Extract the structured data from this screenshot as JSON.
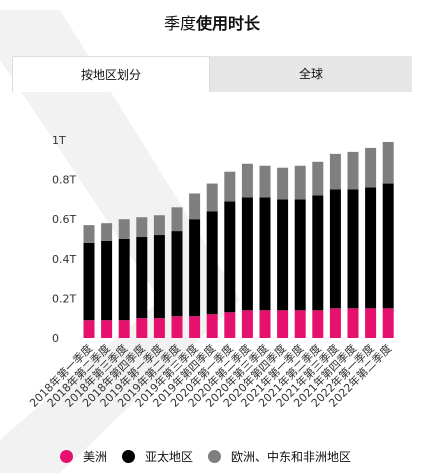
{
  "header": {
    "title_prefix": "季度",
    "title_bold": "使用时长"
  },
  "tabs": [
    {
      "label": "按地区划分",
      "active": true
    },
    {
      "label": "全球",
      "active": false
    }
  ],
  "colors": {
    "americas": "#e6106e",
    "asia_pacific": "#000000",
    "emea": "#7f7f7f",
    "chevron": "#f2f2f2"
  },
  "legend": [
    {
      "label": "美洲",
      "color": "#e6106e"
    },
    {
      "label": "亚太地区",
      "color": "#000000"
    },
    {
      "label": "欧洲、中东和非洲地区",
      "color": "#7f7f7f"
    }
  ],
  "chart_data": {
    "type": "bar",
    "stacked": true,
    "categories": [
      "2018年第一季度",
      "2018年第二季度",
      "2018年第三季度",
      "2018年第四季度",
      "2019年第一季度",
      "2019年第二季度",
      "2019年第三季度",
      "2019年第四季度",
      "2020年第一季度",
      "2020年第二季度",
      "2020年第三季度",
      "2020年第四季度",
      "2021年第一季度",
      "2021年第二季度",
      "2021年第三季度",
      "2021年第四季度",
      "2022年第一季度",
      "2022年第二季度"
    ],
    "series": [
      {
        "name": "美洲",
        "color": "#e6106e",
        "values": [
          0.09,
          0.09,
          0.09,
          0.1,
          0.1,
          0.11,
          0.11,
          0.12,
          0.13,
          0.14,
          0.14,
          0.14,
          0.14,
          0.14,
          0.15,
          0.15,
          0.15,
          0.15
        ]
      },
      {
        "name": "亚太地区",
        "color": "#000000",
        "values": [
          0.39,
          0.4,
          0.41,
          0.41,
          0.42,
          0.43,
          0.49,
          0.52,
          0.56,
          0.57,
          0.57,
          0.56,
          0.56,
          0.58,
          0.6,
          0.6,
          0.61,
          0.63
        ]
      },
      {
        "name": "欧洲、中东和非洲地区",
        "color": "#7f7f7f",
        "values": [
          0.09,
          0.09,
          0.1,
          0.1,
          0.1,
          0.12,
          0.13,
          0.14,
          0.15,
          0.17,
          0.16,
          0.16,
          0.17,
          0.17,
          0.18,
          0.19,
          0.2,
          0.21
        ]
      }
    ],
    "yticks": [
      "0",
      "0.2T",
      "0.4T",
      "0.6T",
      "0.8T",
      "1T"
    ],
    "ytick_values": [
      0,
      0.2,
      0.4,
      0.6,
      0.8,
      1.0
    ],
    "ylim": [
      0,
      1.0
    ],
    "grid": false,
    "legend_position": "bottom"
  }
}
